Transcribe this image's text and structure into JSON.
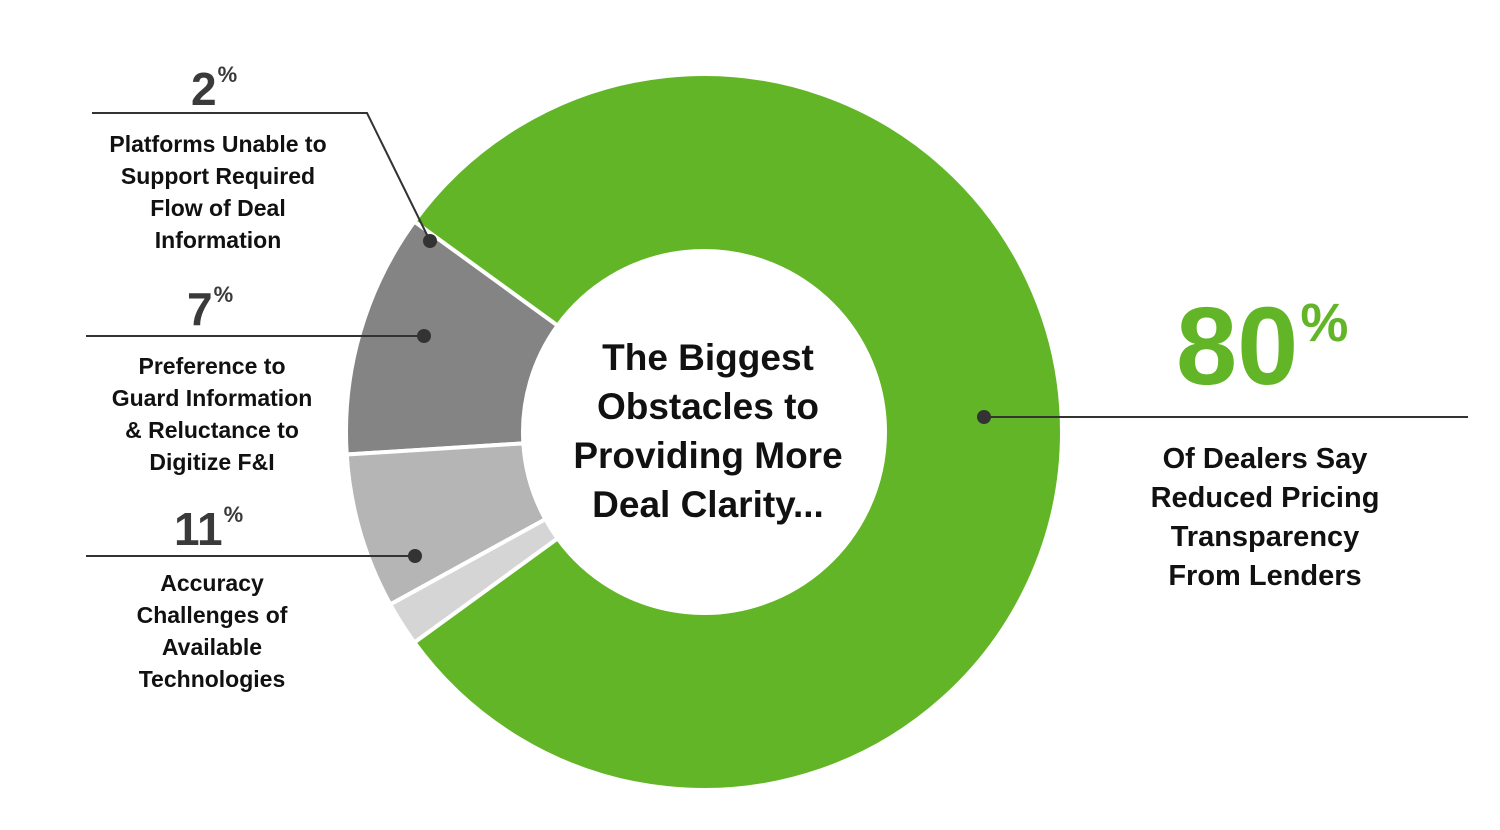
{
  "chart_data": {
    "type": "pie",
    "variant": "donut",
    "title": "The Biggest\nObstacles to\nProviding More\nDeal Clarity...",
    "slices": [
      {
        "value": 80,
        "unit": "%",
        "label": "Of Dealers Say\nReduced Pricing\nTransparency\nFrom Lenders",
        "color": "#62b527"
      },
      {
        "value": 11,
        "unit": "%",
        "label": "Accuracy\nChallenges of\nAvailable\nTechnologies",
        "color": "#848484"
      },
      {
        "value": 7,
        "unit": "%",
        "label": "Preference to\nGuard Information\n& Reluctance to\nDigitize F&I",
        "color": "#b5b5b5"
      },
      {
        "value": 2,
        "unit": "%",
        "label": "Platforms Unable to\nSupport Required\nFlow of Deal\nInformation",
        "color": "#d5d5d5"
      }
    ],
    "callouts": {
      "line_color": "#333333"
    }
  }
}
